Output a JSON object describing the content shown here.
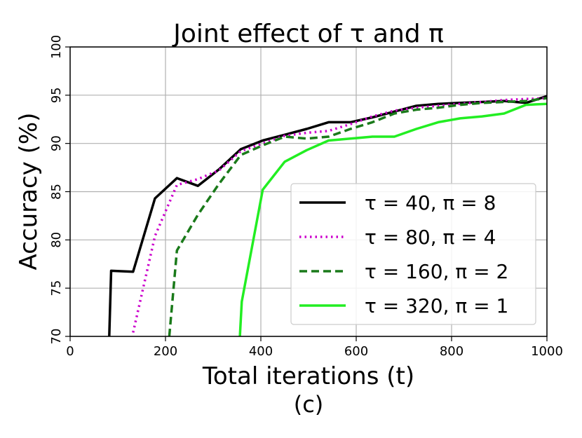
{
  "chart_data": {
    "type": "line",
    "title": "Joint effect of τ and π",
    "xlabel": "Total iterations (t)",
    "ylabel": "Accuracy (%)",
    "caption": "(c)",
    "xlim": [
      0,
      1000
    ],
    "ylim": [
      70,
      100
    ],
    "xticks": [
      "0",
      "200",
      "400",
      "600",
      "800",
      "1000"
    ],
    "yticks": [
      "70",
      "75",
      "80",
      "85",
      "90",
      "95",
      "100"
    ],
    "grid": true,
    "legend_position": "center-right",
    "series": [
      {
        "name": "τ = 40, π = 8",
        "color": "#000000",
        "style": "solid",
        "x": [
          82,
          86,
          132,
          178,
          224,
          268,
          312,
          358,
          404,
          450,
          496,
          542,
          588,
          634,
          680,
          726,
          772,
          818,
          864,
          910,
          956,
          1000
        ],
        "y": [
          70.0,
          76.8,
          76.7,
          84.3,
          86.4,
          85.6,
          87.3,
          89.4,
          90.3,
          90.9,
          91.5,
          92.2,
          92.2,
          92.7,
          93.3,
          93.9,
          94.1,
          94.2,
          94.3,
          94.4,
          94.2,
          94.9
        ]
      },
      {
        "name": "τ = 80, π = 4",
        "color": "#cc00cc",
        "style": "dotted",
        "x": [
          132,
          178,
          224,
          268,
          312,
          358,
          404,
          450,
          496,
          542,
          588,
          634,
          680,
          726,
          772,
          818,
          864,
          910,
          956,
          1000
        ],
        "y": [
          70.4,
          80.4,
          85.7,
          86.3,
          87.2,
          89.2,
          90.0,
          90.8,
          91.1,
          91.3,
          92.0,
          92.8,
          93.4,
          93.7,
          93.9,
          94.1,
          94.3,
          94.5,
          94.6,
          94.7
        ]
      },
      {
        "name": "τ = 160, π = 2",
        "color": "#1a7a1a",
        "style": "dashed",
        "x": [
          208,
          224,
          268,
          312,
          358,
          404,
          450,
          496,
          542,
          588,
          634,
          680,
          726,
          772,
          818,
          864,
          910,
          956,
          1000
        ],
        "y": [
          70.0,
          78.9,
          82.6,
          85.8,
          88.8,
          89.8,
          90.7,
          90.5,
          90.7,
          91.5,
          92.2,
          93.1,
          93.5,
          93.7,
          94.0,
          94.2,
          94.3,
          94.4,
          94.7
        ]
      },
      {
        "name": "τ = 320, π = 1",
        "color": "#22ee22",
        "style": "solid",
        "x": [
          356,
          360,
          404,
          450,
          496,
          542,
          588,
          634,
          680,
          726,
          772,
          818,
          864,
          910,
          956,
          1000
        ],
        "y": [
          70.0,
          73.6,
          85.2,
          88.1,
          89.3,
          90.3,
          90.5,
          90.7,
          90.7,
          91.5,
          92.2,
          92.6,
          92.8,
          93.1,
          94.0,
          94.1
        ]
      }
    ]
  }
}
